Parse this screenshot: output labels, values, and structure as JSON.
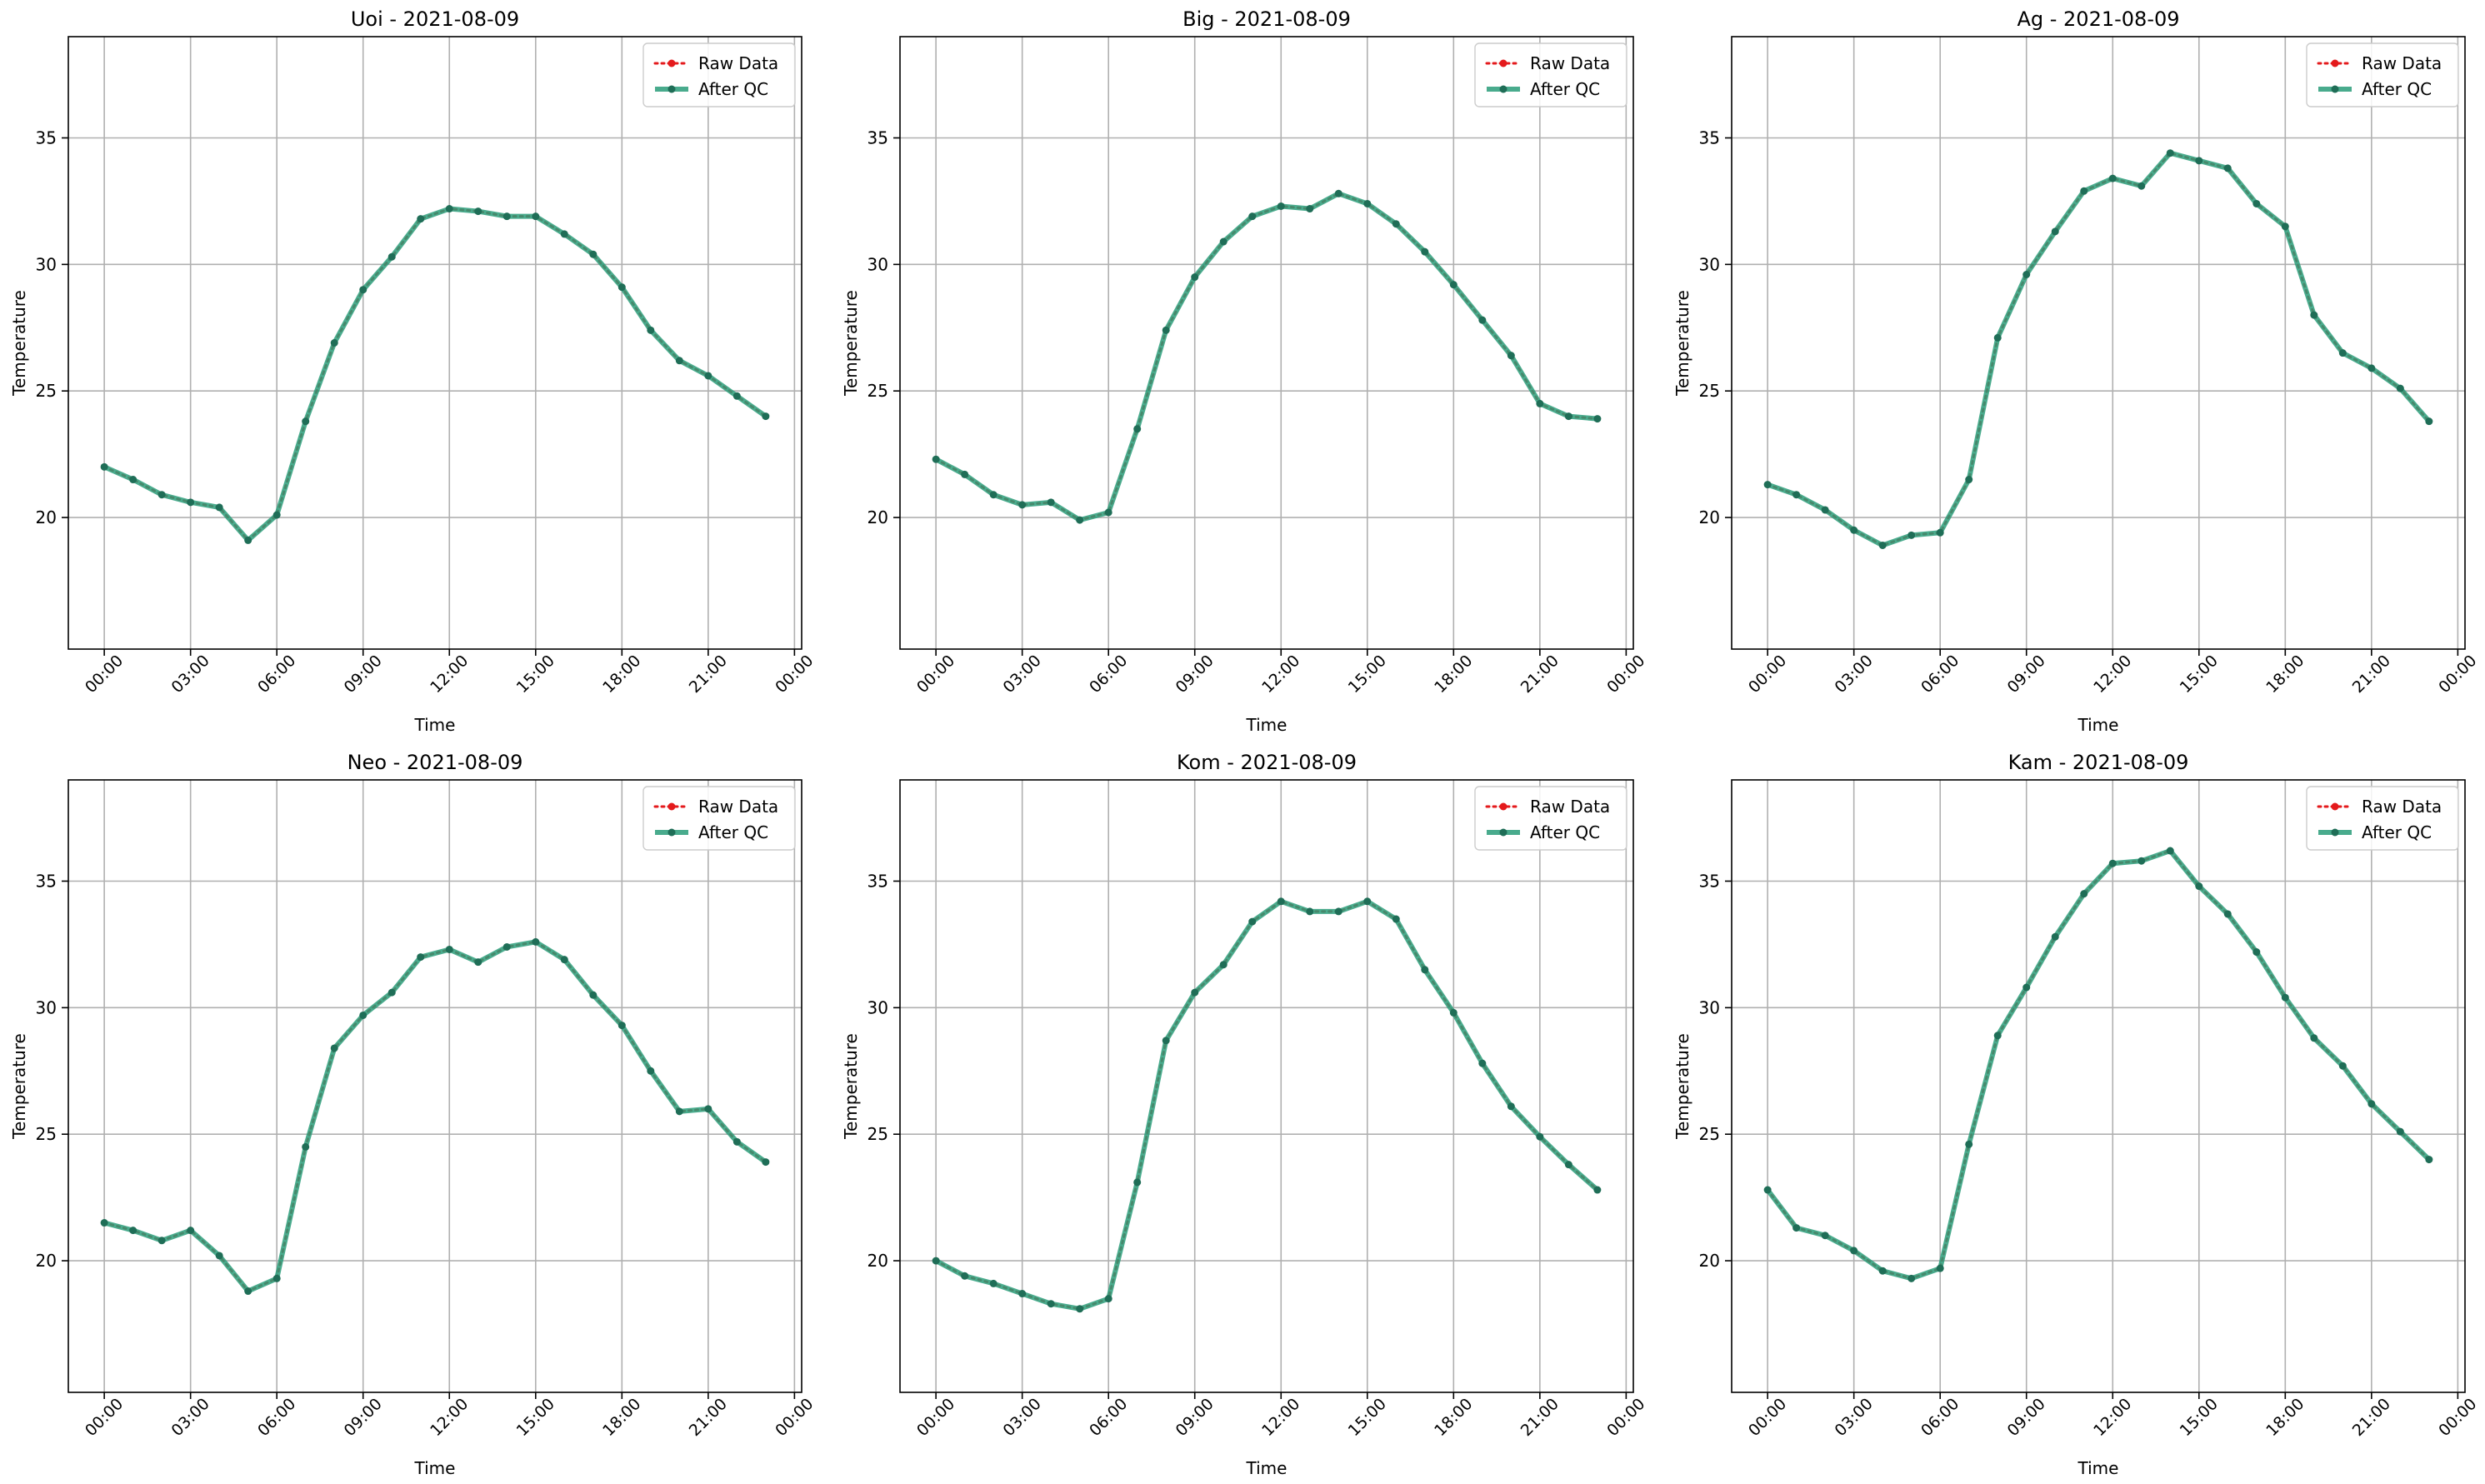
{
  "legend": {
    "raw": "Raw Data",
    "qc": "After QC"
  },
  "colors": {
    "raw": "#e41a1c",
    "qc": "#2a9d7a",
    "qc_marker": "#1f6e57",
    "grid": "#b0b0b0",
    "axis": "#000000"
  },
  "chart_data": [
    {
      "type": "line",
      "title": "Uoi - 2021-08-09",
      "xlabel": "Time",
      "ylabel": "Temperature",
      "x_ticks": [
        "00:00",
        "03:00",
        "06:00",
        "09:00",
        "12:00",
        "15:00",
        "18:00",
        "21:00",
        "00:00"
      ],
      "y_ticks": [
        20,
        25,
        30,
        35
      ],
      "xlim": [
        "2021-08-08 22:45",
        "2021-08-10 00:15"
      ],
      "ylim": [
        14.8,
        39.0
      ],
      "grid": true,
      "legend_position": "upper right",
      "x": [
        "00:00",
        "01:00",
        "02:00",
        "03:00",
        "04:00",
        "05:00",
        "06:00",
        "07:00",
        "08:00",
        "09:00",
        "10:00",
        "11:00",
        "12:00",
        "13:00",
        "14:00",
        "15:00",
        "16:00",
        "17:00",
        "18:00",
        "19:00",
        "20:00",
        "21:00",
        "22:00",
        "23:00"
      ],
      "series": [
        {
          "name": "Raw Data",
          "values": [
            22.0,
            21.5,
            20.9,
            20.6,
            20.4,
            19.1,
            20.1,
            23.8,
            26.9,
            29.0,
            30.3,
            31.8,
            32.2,
            32.1,
            31.9,
            31.9,
            31.2,
            30.4,
            29.1,
            27.4,
            26.2,
            25.6,
            24.8,
            24.0
          ]
        },
        {
          "name": "After QC",
          "values": [
            22.0,
            21.5,
            20.9,
            20.6,
            20.4,
            19.1,
            20.1,
            23.8,
            26.9,
            29.0,
            30.3,
            31.8,
            32.2,
            32.1,
            31.9,
            31.9,
            31.2,
            30.4,
            29.1,
            27.4,
            26.2,
            25.6,
            24.8,
            24.0
          ]
        }
      ]
    },
    {
      "type": "line",
      "title": "Big - 2021-08-09",
      "xlabel": "Time",
      "ylabel": "Temperature",
      "x_ticks": [
        "00:00",
        "03:00",
        "06:00",
        "09:00",
        "12:00",
        "15:00",
        "18:00",
        "21:00",
        "00:00"
      ],
      "y_ticks": [
        20,
        25,
        30,
        35
      ],
      "xlim": [
        "2021-08-08 22:45",
        "2021-08-10 00:15"
      ],
      "ylim": [
        14.8,
        39.0
      ],
      "grid": true,
      "legend_position": "upper right",
      "x": [
        "00:00",
        "01:00",
        "02:00",
        "03:00",
        "04:00",
        "05:00",
        "06:00",
        "07:00",
        "08:00",
        "09:00",
        "10:00",
        "11:00",
        "12:00",
        "13:00",
        "14:00",
        "15:00",
        "16:00",
        "17:00",
        "18:00",
        "19:00",
        "20:00",
        "21:00",
        "22:00",
        "23:00"
      ],
      "series": [
        {
          "name": "Raw Data",
          "values": [
            22.3,
            21.7,
            20.9,
            20.5,
            20.6,
            19.9,
            20.2,
            23.5,
            27.4,
            29.5,
            30.9,
            31.9,
            32.3,
            32.2,
            32.8,
            32.4,
            31.6,
            30.5,
            29.2,
            27.8,
            26.4,
            24.5,
            24.0,
            23.9
          ]
        },
        {
          "name": "After QC",
          "values": [
            22.3,
            21.7,
            20.9,
            20.5,
            20.6,
            19.9,
            20.2,
            23.5,
            27.4,
            29.5,
            30.9,
            31.9,
            32.3,
            32.2,
            32.8,
            32.4,
            31.6,
            30.5,
            29.2,
            27.8,
            26.4,
            24.5,
            24.0,
            23.9
          ]
        }
      ]
    },
    {
      "type": "line",
      "title": "Ag - 2021-08-09",
      "xlabel": "Time",
      "ylabel": "Temperature",
      "x_ticks": [
        "00:00",
        "03:00",
        "06:00",
        "09:00",
        "12:00",
        "15:00",
        "18:00",
        "21:00",
        "00:00"
      ],
      "y_ticks": [
        20,
        25,
        30,
        35
      ],
      "xlim": [
        "2021-08-08 22:45",
        "2021-08-10 00:15"
      ],
      "ylim": [
        14.8,
        39.0
      ],
      "grid": true,
      "legend_position": "upper right",
      "x": [
        "00:00",
        "01:00",
        "02:00",
        "03:00",
        "04:00",
        "05:00",
        "06:00",
        "07:00",
        "08:00",
        "09:00",
        "10:00",
        "11:00",
        "12:00",
        "13:00",
        "14:00",
        "15:00",
        "16:00",
        "17:00",
        "18:00",
        "19:00",
        "20:00",
        "21:00",
        "22:00",
        "23:00"
      ],
      "series": [
        {
          "name": "Raw Data",
          "values": [
            21.3,
            20.9,
            20.3,
            19.5,
            18.9,
            19.3,
            19.4,
            21.5,
            27.1,
            29.6,
            31.3,
            32.9,
            33.4,
            33.1,
            34.4,
            34.1,
            33.8,
            32.4,
            31.5,
            28.0,
            26.5,
            25.9,
            25.1,
            23.8
          ]
        },
        {
          "name": "After QC",
          "values": [
            21.3,
            20.9,
            20.3,
            19.5,
            18.9,
            19.3,
            19.4,
            21.5,
            27.1,
            29.6,
            31.3,
            32.9,
            33.4,
            33.1,
            34.4,
            34.1,
            33.8,
            32.4,
            31.5,
            28.0,
            26.5,
            25.9,
            25.1,
            23.8
          ]
        }
      ]
    },
    {
      "type": "line",
      "title": "Neo - 2021-08-09",
      "xlabel": "Time",
      "ylabel": "Temperature",
      "x_ticks": [
        "00:00",
        "03:00",
        "06:00",
        "09:00",
        "12:00",
        "15:00",
        "18:00",
        "21:00",
        "00:00"
      ],
      "y_ticks": [
        20,
        25,
        30,
        35
      ],
      "xlim": [
        "2021-08-08 22:45",
        "2021-08-10 00:15"
      ],
      "ylim": [
        14.8,
        39.0
      ],
      "grid": true,
      "legend_position": "upper right",
      "x": [
        "00:00",
        "01:00",
        "02:00",
        "03:00",
        "04:00",
        "05:00",
        "06:00",
        "07:00",
        "08:00",
        "09:00",
        "10:00",
        "11:00",
        "12:00",
        "13:00",
        "14:00",
        "15:00",
        "16:00",
        "17:00",
        "18:00",
        "19:00",
        "20:00",
        "21:00",
        "22:00",
        "23:00"
      ],
      "series": [
        {
          "name": "Raw Data",
          "values": [
            21.5,
            21.2,
            20.8,
            21.2,
            20.2,
            18.8,
            19.3,
            24.5,
            28.4,
            29.7,
            30.6,
            32.0,
            32.3,
            31.8,
            32.4,
            32.6,
            31.9,
            30.5,
            29.3,
            27.5,
            25.9,
            26.0,
            24.7,
            23.9
          ]
        },
        {
          "name": "After QC",
          "values": [
            21.5,
            21.2,
            20.8,
            21.2,
            20.2,
            18.8,
            19.3,
            24.5,
            28.4,
            29.7,
            30.6,
            32.0,
            32.3,
            31.8,
            32.4,
            32.6,
            31.9,
            30.5,
            29.3,
            27.5,
            25.9,
            26.0,
            24.7,
            23.9
          ]
        }
      ]
    },
    {
      "type": "line",
      "title": "Kom - 2021-08-09",
      "xlabel": "Time",
      "ylabel": "Temperature",
      "x_ticks": [
        "00:00",
        "03:00",
        "06:00",
        "09:00",
        "12:00",
        "15:00",
        "18:00",
        "21:00",
        "00:00"
      ],
      "y_ticks": [
        20,
        25,
        30,
        35
      ],
      "xlim": [
        "2021-08-08 22:45",
        "2021-08-10 00:15"
      ],
      "ylim": [
        14.8,
        39.0
      ],
      "grid": true,
      "legend_position": "upper right",
      "x": [
        "00:00",
        "01:00",
        "02:00",
        "03:00",
        "04:00",
        "05:00",
        "06:00",
        "07:00",
        "08:00",
        "09:00",
        "10:00",
        "11:00",
        "12:00",
        "13:00",
        "14:00",
        "15:00",
        "16:00",
        "17:00",
        "18:00",
        "19:00",
        "20:00",
        "21:00",
        "22:00",
        "23:00"
      ],
      "series": [
        {
          "name": "Raw Data",
          "values": [
            20.0,
            19.4,
            19.1,
            18.7,
            18.3,
            18.1,
            18.5,
            23.1,
            28.7,
            30.6,
            31.7,
            33.4,
            34.2,
            33.8,
            33.8,
            34.2,
            33.5,
            31.5,
            29.8,
            27.8,
            26.1,
            24.9,
            23.8,
            22.8
          ]
        },
        {
          "name": "After QC",
          "values": [
            20.0,
            19.4,
            19.1,
            18.7,
            18.3,
            18.1,
            18.5,
            23.1,
            28.7,
            30.6,
            31.7,
            33.4,
            34.2,
            33.8,
            33.8,
            34.2,
            33.5,
            31.5,
            29.8,
            27.8,
            26.1,
            24.9,
            23.8,
            22.8
          ]
        }
      ]
    },
    {
      "type": "line",
      "title": "Kam - 2021-08-09",
      "xlabel": "Time",
      "ylabel": "Temperature",
      "x_ticks": [
        "00:00",
        "03:00",
        "06:00",
        "09:00",
        "12:00",
        "15:00",
        "18:00",
        "21:00",
        "00:00"
      ],
      "y_ticks": [
        20,
        25,
        30,
        35
      ],
      "xlim": [
        "2021-08-08 22:45",
        "2021-08-10 00:15"
      ],
      "ylim": [
        14.8,
        39.0
      ],
      "grid": true,
      "legend_position": "upper right",
      "x": [
        "00:00",
        "01:00",
        "02:00",
        "03:00",
        "04:00",
        "05:00",
        "06:00",
        "07:00",
        "08:00",
        "09:00",
        "10:00",
        "11:00",
        "12:00",
        "13:00",
        "14:00",
        "15:00",
        "16:00",
        "17:00",
        "18:00",
        "19:00",
        "20:00",
        "21:00",
        "22:00",
        "23:00"
      ],
      "series": [
        {
          "name": "Raw Data",
          "values": [
            22.8,
            21.3,
            21.0,
            20.4,
            19.6,
            19.3,
            19.7,
            24.6,
            28.9,
            30.8,
            32.8,
            34.5,
            35.7,
            35.8,
            36.2,
            34.8,
            33.7,
            32.2,
            30.4,
            28.8,
            27.7,
            26.2,
            25.1,
            24.0
          ]
        },
        {
          "name": "After QC",
          "values": [
            22.8,
            21.3,
            21.0,
            20.4,
            19.6,
            19.3,
            19.7,
            24.6,
            28.9,
            30.8,
            32.8,
            34.5,
            35.7,
            35.8,
            36.2,
            34.8,
            33.7,
            32.2,
            30.4,
            28.8,
            27.7,
            26.2,
            25.1,
            24.0
          ]
        }
      ]
    }
  ]
}
